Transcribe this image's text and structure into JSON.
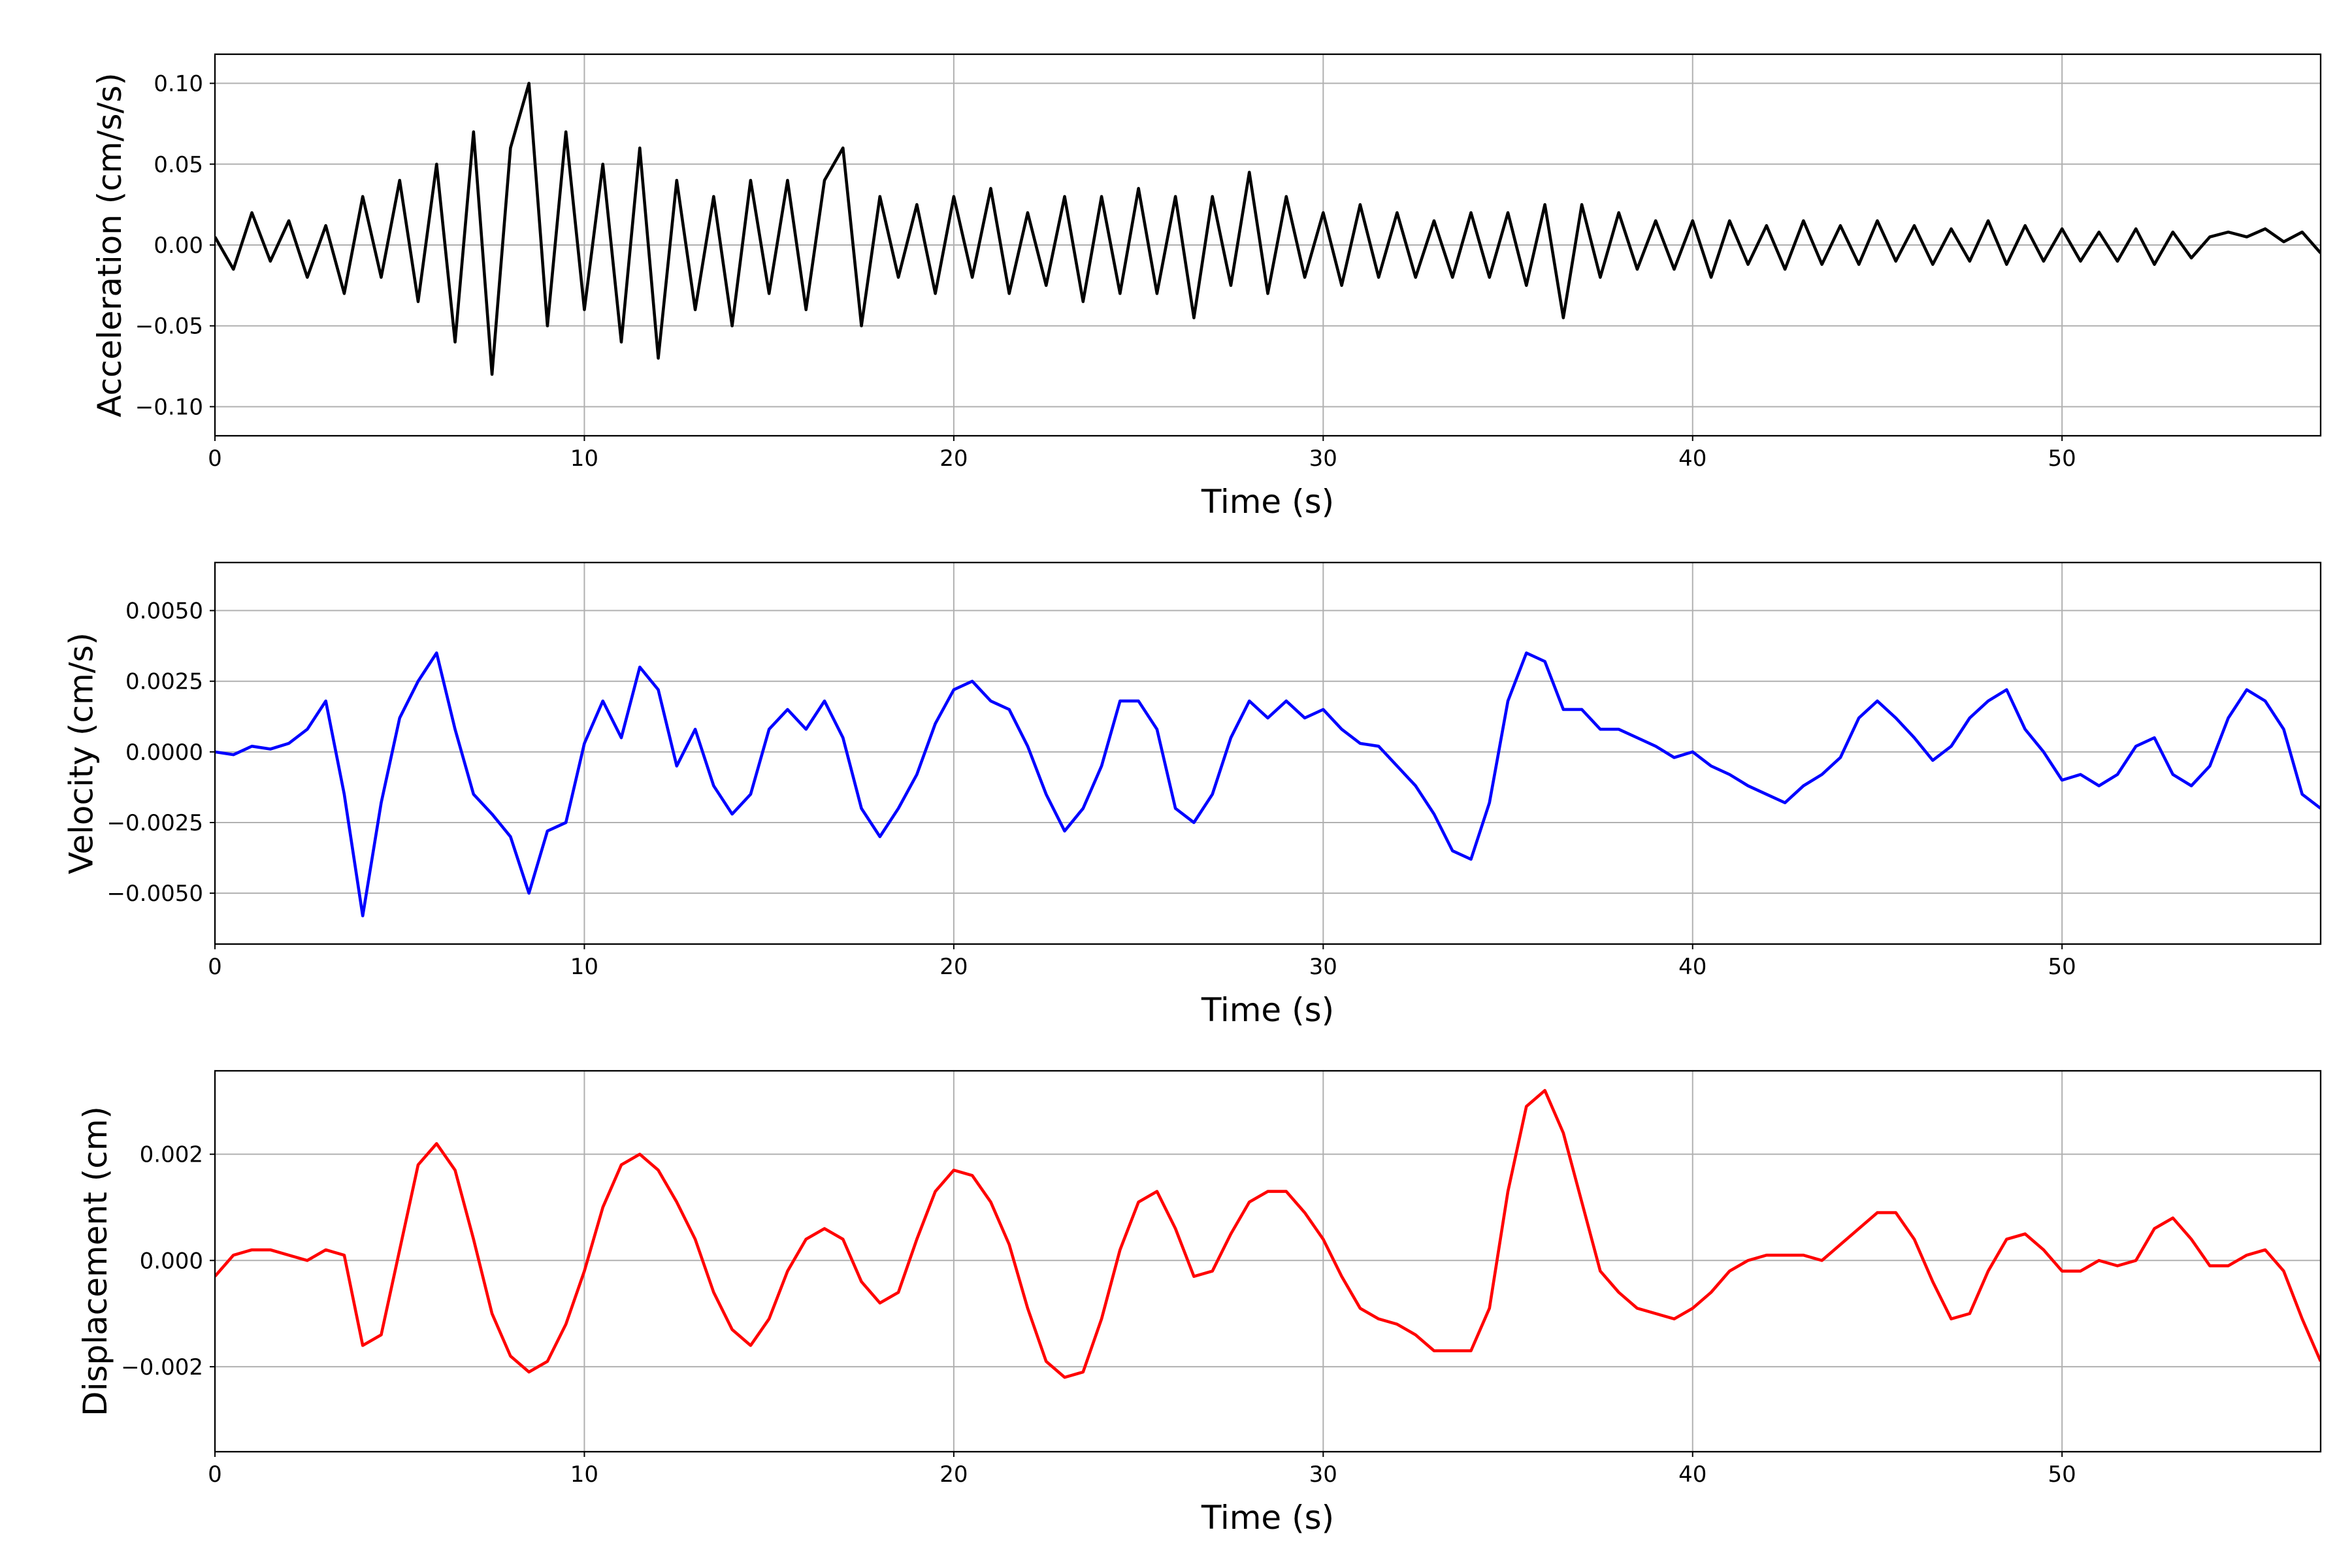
{
  "chart_data": [
    {
      "type": "line",
      "ylabel": "Acceleration (cm/s/s)",
      "xlabel": "Time (s)",
      "color": "#000000",
      "grid": true,
      "xlim": [
        0,
        57
      ],
      "xticks": [
        0,
        10,
        20,
        30,
        40,
        50
      ],
      "ylim": [
        -0.118,
        0.118
      ],
      "yticks": [
        {
          "value": -0.1,
          "label": "−0.10"
        },
        {
          "value": -0.05,
          "label": "−0.05"
        },
        {
          "value": 0,
          "label": "0.00"
        },
        {
          "value": 0.05,
          "label": "0.05"
        },
        {
          "value": 0.1,
          "label": "0.10"
        }
      ],
      "x": [
        0,
        0.5,
        1,
        1.5,
        2,
        2.5,
        3,
        3.5,
        4,
        4.5,
        5,
        5.5,
        6,
        6.5,
        7,
        7.5,
        8,
        8.5,
        9,
        9.5,
        10,
        10.5,
        11,
        11.5,
        12,
        12.5,
        13,
        13.5,
        14,
        14.5,
        15,
        15.5,
        16,
        16.5,
        17,
        17.5,
        18,
        18.5,
        19,
        19.5,
        20,
        20.5,
        21,
        21.5,
        22,
        22.5,
        23,
        23.5,
        24,
        24.5,
        25,
        25.5,
        26,
        26.5,
        27,
        27.5,
        28,
        28.5,
        29,
        29.5,
        30,
        30.5,
        31,
        31.5,
        32,
        32.5,
        33,
        33.5,
        34,
        34.5,
        35,
        35.5,
        36,
        36.5,
        37,
        37.5,
        38,
        38.5,
        39,
        39.5,
        40,
        40.5,
        41,
        41.5,
        42,
        42.5,
        43,
        43.5,
        44,
        44.5,
        45,
        45.5,
        46,
        46.5,
        47,
        47.5,
        48,
        48.5,
        49,
        49.5,
        50,
        50.5,
        51,
        51.5,
        52,
        52.5,
        53,
        53.5,
        54,
        54.5,
        55,
        55.5,
        56,
        56.5,
        57
      ],
      "values": [
        0.005,
        -0.015,
        0.02,
        -0.01,
        0.015,
        -0.02,
        0.012,
        -0.03,
        0.03,
        -0.02,
        0.04,
        -0.035,
        0.05,
        -0.06,
        0.07,
        -0.08,
        0.06,
        0.1,
        -0.05,
        0.07,
        -0.04,
        0.05,
        -0.06,
        0.06,
        -0.07,
        0.04,
        -0.04,
        0.03,
        -0.05,
        0.04,
        -0.03,
        0.04,
        -0.04,
        0.04,
        0.06,
        -0.05,
        0.03,
        -0.02,
        0.025,
        -0.03,
        0.03,
        -0.02,
        0.035,
        -0.03,
        0.02,
        -0.025,
        0.03,
        -0.035,
        0.03,
        -0.03,
        0.035,
        -0.03,
        0.03,
        -0.045,
        0.03,
        -0.025,
        0.045,
        -0.03,
        0.03,
        -0.02,
        0.02,
        -0.025,
        0.025,
        -0.02,
        0.02,
        -0.02,
        0.015,
        -0.02,
        0.02,
        -0.02,
        0.02,
        -0.025,
        0.025,
        -0.045,
        0.025,
        -0.02,
        0.02,
        -0.015,
        0.015,
        -0.015,
        0.015,
        -0.02,
        0.015,
        -0.012,
        0.012,
        -0.015,
        0.015,
        -0.012,
        0.012,
        -0.012,
        0.015,
        -0.01,
        0.012,
        -0.012,
        0.01,
        -0.01,
        0.015,
        -0.012,
        0.012,
        -0.01,
        0.01,
        -0.01,
        0.008,
        -0.01,
        0.01,
        -0.012,
        0.008,
        -0.008,
        0.005,
        0.008,
        0.005,
        0.01,
        0.002,
        0.008,
        -0.005
      ]
    },
    {
      "type": "line",
      "ylabel": "Velocity (cm/s)",
      "xlabel": "Time (s)",
      "color": "#0000ff",
      "grid": true,
      "xlim": [
        0,
        57
      ],
      "xticks": [
        0,
        10,
        20,
        30,
        40,
        50
      ],
      "ylim": [
        -0.0068,
        0.0067
      ],
      "yticks": [
        {
          "value": -0.005,
          "label": "−0.0050"
        },
        {
          "value": -0.0025,
          "label": "−0.0025"
        },
        {
          "value": 0,
          "label": "0.0000"
        },
        {
          "value": 0.0025,
          "label": "0.0025"
        },
        {
          "value": 0.005,
          "label": "0.0050"
        }
      ],
      "x": [
        0,
        0.5,
        1,
        1.5,
        2,
        2.5,
        3,
        3.5,
        4,
        4.5,
        5,
        5.5,
        6,
        6.5,
        7,
        7.5,
        8,
        8.5,
        9,
        9.5,
        10,
        10.5,
        11,
        11.5,
        12,
        12.5,
        13,
        13.5,
        14,
        14.5,
        15,
        15.5,
        16,
        16.5,
        17,
        17.5,
        18,
        18.5,
        19,
        19.5,
        20,
        20.5,
        21,
        21.5,
        22,
        22.5,
        23,
        23.5,
        24,
        24.5,
        25,
        25.5,
        26,
        26.5,
        27,
        27.5,
        28,
        28.5,
        29,
        29.5,
        30,
        30.5,
        31,
        31.5,
        32,
        32.5,
        33,
        33.5,
        34,
        34.5,
        35,
        35.5,
        36,
        36.5,
        37,
        37.5,
        38,
        38.5,
        39,
        39.5,
        40,
        40.5,
        41,
        41.5,
        42,
        42.5,
        43,
        43.5,
        44,
        44.5,
        45,
        45.5,
        46,
        46.5,
        47,
        47.5,
        48,
        48.5,
        49,
        49.5,
        50,
        50.5,
        51,
        51.5,
        52,
        52.5,
        53,
        53.5,
        54,
        54.5,
        55,
        55.5,
        56,
        56.5,
        57
      ],
      "values": [
        0,
        -0.0001,
        0.0002,
        0.0001,
        0.0003,
        0.0008,
        0.0018,
        -0.0015,
        -0.0058,
        -0.0018,
        0.0012,
        0.0025,
        0.0035,
        0.0008,
        -0.0015,
        -0.0022,
        -0.003,
        -0.005,
        -0.0028,
        -0.0025,
        0.0003,
        0.0018,
        0.0005,
        0.003,
        0.0022,
        -0.0005,
        0.0008,
        -0.0012,
        -0.0022,
        -0.0015,
        0.0008,
        0.0015,
        0.0008,
        0.0018,
        0.0005,
        -0.002,
        -0.003,
        -0.002,
        -0.0008,
        0.001,
        0.0022,
        0.0025,
        0.0018,
        0.0015,
        0.0002,
        -0.0015,
        -0.0028,
        -0.002,
        -0.0005,
        0.0018,
        0.0018,
        0.0008,
        -0.002,
        -0.0025,
        -0.0015,
        0.0005,
        0.0018,
        0.0012,
        0.0018,
        0.0012,
        0.0015,
        0.0008,
        0.0003,
        0.0002,
        -0.0005,
        -0.0012,
        -0.0022,
        -0.0035,
        -0.0038,
        -0.0018,
        0.0018,
        0.0035,
        0.0032,
        0.0015,
        0.0015,
        0.0008,
        0.0008,
        0.0005,
        0.0002,
        -0.0002,
        0,
        -0.0005,
        -0.0008,
        -0.0012,
        -0.0015,
        -0.0018,
        -0.0012,
        -0.0008,
        -0.0002,
        0.0012,
        0.0018,
        0.0012,
        0.0005,
        -0.0003,
        0.0002,
        0.0012,
        0.0018,
        0.0022,
        0.0008,
        0,
        -0.001,
        -0.0008,
        -0.0012,
        -0.0008,
        0.0002,
        0.0005,
        -0.0008,
        -0.0012,
        -0.0005,
        0.0012,
        0.0022,
        0.0018,
        0.0008,
        -0.0015,
        -0.002
      ]
    },
    {
      "type": "line",
      "ylabel": "Displacement (cm)",
      "xlabel": "Time (s)",
      "color": "#ff0000",
      "grid": true,
      "xlim": [
        0,
        57
      ],
      "xticks": [
        0,
        10,
        20,
        30,
        40,
        50
      ],
      "ylim": [
        -0.0036,
        0.00357
      ],
      "yticks": [
        {
          "value": -0.002,
          "label": "−0.002"
        },
        {
          "value": 0,
          "label": "0.000"
        },
        {
          "value": 0.002,
          "label": "0.002"
        }
      ],
      "x": [
        0,
        0.5,
        1,
        1.5,
        2,
        2.5,
        3,
        3.5,
        4,
        4.5,
        5,
        5.5,
        6,
        6.5,
        7,
        7.5,
        8,
        8.5,
        9,
        9.5,
        10,
        10.5,
        11,
        11.5,
        12,
        12.5,
        13,
        13.5,
        14,
        14.5,
        15,
        15.5,
        16,
        16.5,
        17,
        17.5,
        18,
        18.5,
        19,
        19.5,
        20,
        20.5,
        21,
        21.5,
        22,
        22.5,
        23,
        23.5,
        24,
        24.5,
        25,
        25.5,
        26,
        26.5,
        27,
        27.5,
        28,
        28.5,
        29,
        29.5,
        30,
        30.5,
        31,
        31.5,
        32,
        32.5,
        33,
        33.5,
        34,
        34.5,
        35,
        35.5,
        36,
        36.5,
        37,
        37.5,
        38,
        38.5,
        39,
        39.5,
        40,
        40.5,
        41,
        41.5,
        42,
        42.5,
        43,
        43.5,
        44,
        44.5,
        45,
        45.5,
        46,
        46.5,
        47,
        47.5,
        48,
        48.5,
        49,
        49.5,
        50,
        50.5,
        51,
        51.5,
        52,
        52.5,
        53,
        53.5,
        54,
        54.5,
        55,
        55.5,
        56,
        56.5,
        57
      ],
      "values": [
        -0.0003,
        0.0001,
        0.0002,
        0.0002,
        0.0001,
        0,
        0.0002,
        0.0001,
        -0.0016,
        -0.0014,
        0.0002,
        0.0018,
        0.0022,
        0.0017,
        0.0004,
        -0.001,
        -0.0018,
        -0.0021,
        -0.0019,
        -0.0012,
        -0.0002,
        0.001,
        0.0018,
        0.002,
        0.0017,
        0.0011,
        0.0004,
        -0.0006,
        -0.0013,
        -0.0016,
        -0.0011,
        -0.0002,
        0.0004,
        0.0006,
        0.0004,
        -0.0004,
        -0.0008,
        -0.0006,
        0.0004,
        0.0013,
        0.0017,
        0.0016,
        0.0011,
        0.0003,
        -0.0009,
        -0.0019,
        -0.0022,
        -0.0021,
        -0.0011,
        0.0002,
        0.0011,
        0.0013,
        0.0006,
        -0.0003,
        -0.0002,
        0.0005,
        0.0011,
        0.0013,
        0.0013,
        0.0009,
        0.0004,
        -0.0003,
        -0.0009,
        -0.0011,
        -0.0012,
        -0.0014,
        -0.0017,
        -0.0017,
        -0.0017,
        -0.0009,
        0.0013,
        0.0029,
        0.0032,
        0.0024,
        0.0011,
        -0.0002,
        -0.0006,
        -0.0009,
        -0.001,
        -0.0011,
        -0.0009,
        -0.0006,
        -0.0002,
        0,
        0.0001,
        0.0001,
        0.0001,
        0,
        0.0003,
        0.0006,
        0.0009,
        0.0009,
        0.0004,
        -0.0004,
        -0.0011,
        -0.001,
        -0.0002,
        0.0004,
        0.0005,
        0.0002,
        -0.0002,
        -0.0002,
        0,
        -0.0001,
        0,
        0.0006,
        0.0008,
        0.0004,
        -0.0001,
        -0.0001,
        0.0001,
        0.0002,
        -0.0002,
        -0.0011,
        -0.0019
      ]
    }
  ]
}
